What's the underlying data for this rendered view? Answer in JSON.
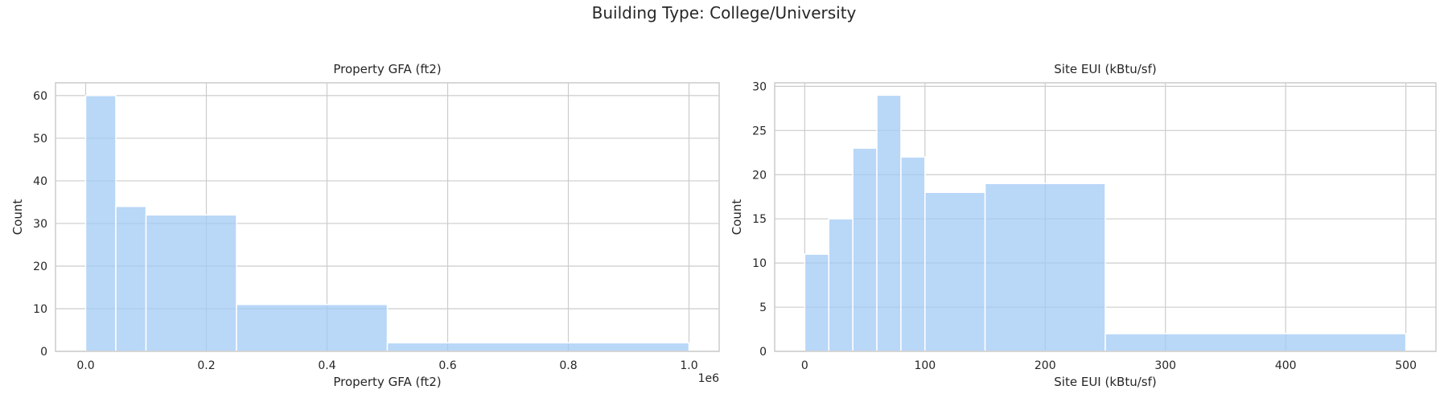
{
  "suptitle": "Building Type: College/University",
  "colors": {
    "bar": "#a1c9f4",
    "grid": "#cccccc",
    "spine": "#cccccc",
    "text": "#262626"
  },
  "chart_data": [
    {
      "type": "bar",
      "title": "Property GFA (ft2)",
      "xlabel": "Property GFA (ft2)",
      "ylabel": "Count",
      "offset_text": "1e6",
      "xlim": [
        -50000,
        1050000
      ],
      "ylim": [
        0,
        63
      ],
      "xticks": [
        0,
        200000,
        400000,
        600000,
        800000,
        1000000
      ],
      "xtick_labels": [
        "0.0",
        "0.2",
        "0.4",
        "0.6",
        "0.8",
        "1.0"
      ],
      "yticks": [
        0,
        10,
        20,
        30,
        40,
        50,
        60
      ],
      "ytick_labels": [
        "0",
        "10",
        "20",
        "30",
        "40",
        "50",
        "60"
      ],
      "grid": true,
      "bins": [
        {
          "x0": 0,
          "x1": 50000,
          "count": 60
        },
        {
          "x0": 50000,
          "x1": 100000,
          "count": 34
        },
        {
          "x0": 100000,
          "x1": 250000,
          "count": 32
        },
        {
          "x0": 250000,
          "x1": 500000,
          "count": 11
        },
        {
          "x0": 500000,
          "x1": 1000000,
          "count": 2
        }
      ]
    },
    {
      "type": "bar",
      "title": "Site EUI (kBtu/sf)",
      "xlabel": "Site EUI (kBtu/sf)",
      "ylabel": "Count",
      "xlim": [
        -25,
        525
      ],
      "ylim": [
        0,
        30.4
      ],
      "xticks": [
        0,
        100,
        200,
        300,
        400,
        500
      ],
      "xtick_labels": [
        "0",
        "100",
        "200",
        "300",
        "400",
        "500"
      ],
      "yticks": [
        0,
        5,
        10,
        15,
        20,
        25,
        30
      ],
      "ytick_labels": [
        "0",
        "5",
        "10",
        "15",
        "20",
        "25",
        "30"
      ],
      "grid": true,
      "bins": [
        {
          "x0": 0,
          "x1": 20,
          "count": 11
        },
        {
          "x0": 20,
          "x1": 40,
          "count": 15
        },
        {
          "x0": 40,
          "x1": 60,
          "count": 23
        },
        {
          "x0": 60,
          "x1": 80,
          "count": 29
        },
        {
          "x0": 80,
          "x1": 100,
          "count": 22
        },
        {
          "x0": 100,
          "x1": 150,
          "count": 18
        },
        {
          "x0": 150,
          "x1": 250,
          "count": 19
        },
        {
          "x0": 250,
          "x1": 500,
          "count": 2
        }
      ]
    }
  ]
}
